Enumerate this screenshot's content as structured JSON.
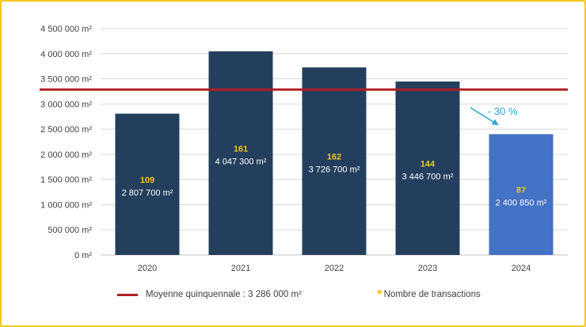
{
  "chart_data": {
    "type": "bar",
    "categories": [
      "2020",
      "2021",
      "2022",
      "2023",
      "2024"
    ],
    "values": [
      2807700,
      4047300,
      3726700,
      3446700,
      2400850
    ],
    "value_labels": [
      "2 807 700 m²",
      "4 047 300 m²",
      "3 726 700 m²",
      "3 446 700 m²",
      "2 400 850 m²"
    ],
    "transactions": [
      "109",
      "161",
      "162",
      "144",
      "87"
    ],
    "ylim": [
      0,
      4500000
    ],
    "yticks": [
      0,
      500000,
      1000000,
      1500000,
      2000000,
      2500000,
      3000000,
      3500000,
      4000000,
      4500000
    ],
    "ytick_labels": [
      "0 m²",
      "500 000 m²",
      "1 000 000 m²",
      "1 500 000 m²",
      "2 000 000 m²",
      "2 500 000 m²",
      "3 000 000 m²",
      "3 500 000 m²",
      "4 000 000 m²",
      "4 500 000 m²"
    ],
    "average": 3286000,
    "grid": true,
    "legend_position": "bottom",
    "annotation": "- 30 %",
    "colors": {
      "bar": "#243f5e",
      "bar_highlight": "#4472c4",
      "average_line": "#b01e23",
      "count_text": "#f5c518",
      "annotation": "#29a3d6",
      "frame": "#f5c518"
    }
  },
  "legend": {
    "average_label": "Moyenne quinquennale : 3 286 000 m²",
    "transactions_star": "*",
    "transactions_label": "Nombre de transactions"
  }
}
